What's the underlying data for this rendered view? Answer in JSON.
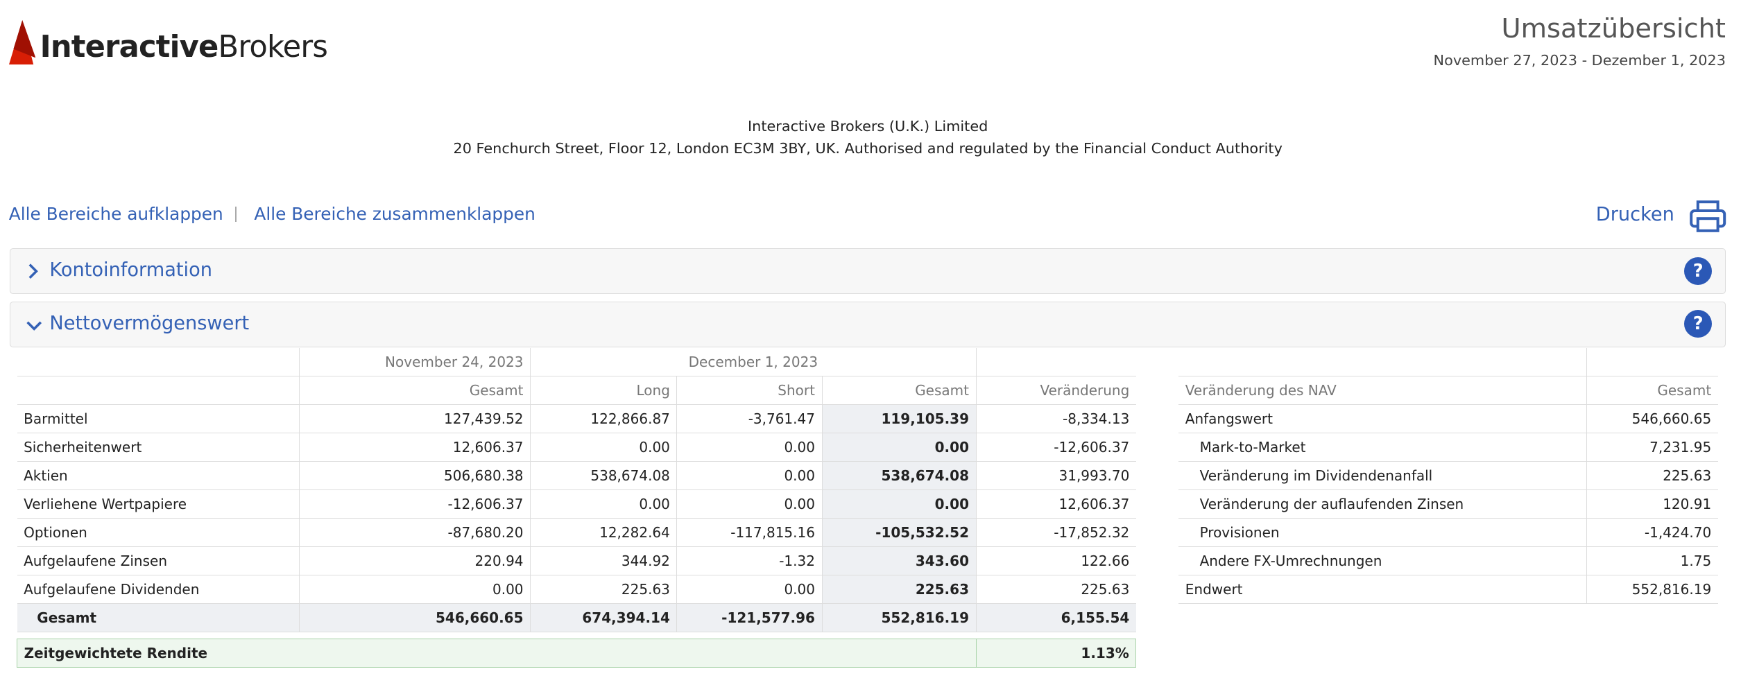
{
  "header": {
    "logo_bold": "Interactive",
    "logo_light": "Brokers",
    "title": "Umsatzübersicht",
    "period": "November 27, 2023 - Dezember 1, 2023"
  },
  "company": {
    "name": "Interactive Brokers (U.K.) Limited",
    "address": "20 Fenchurch Street, Floor 12, London EC3M 3BY, UK. Authorised and regulated by the Financial Conduct Authority"
  },
  "links": {
    "expand": "Alle Bereiche aufklappen",
    "collapse": "Alle Bereiche zusammenklappen",
    "print": "Drucken"
  },
  "sections": [
    {
      "title": "Kontoinformation"
    },
    {
      "title": "Nettovermögenswert"
    }
  ],
  "nav_table": {
    "group_headers": [
      "November 24, 2023",
      "December 1, 2023"
    ],
    "columns": [
      "Gesamt",
      "Long",
      "Short",
      "Gesamt",
      "Veränderung"
    ],
    "rows": [
      [
        "Barmittel",
        "127,439.52",
        "122,866.87",
        "-3,761.47",
        "119,105.39",
        "-8,334.13"
      ],
      [
        "Sicherheitenwert",
        "12,606.37",
        "0.00",
        "0.00",
        "0.00",
        "-12,606.37"
      ],
      [
        "Aktien",
        "506,680.38",
        "538,674.08",
        "0.00",
        "538,674.08",
        "31,993.70"
      ],
      [
        "Verliehene Wertpapiere",
        "-12,606.37",
        "0.00",
        "0.00",
        "0.00",
        "12,606.37"
      ],
      [
        "Optionen",
        "-87,680.20",
        "12,282.64",
        "-117,815.16",
        "-105,532.52",
        "-17,852.32"
      ],
      [
        "Aufgelaufene Zinsen",
        "220.94",
        "344.92",
        "-1.32",
        "343.60",
        "122.66"
      ],
      [
        "Aufgelaufene Dividenden",
        "0.00",
        "225.63",
        "0.00",
        "225.63",
        "225.63"
      ]
    ],
    "total": [
      "Gesamt",
      "546,660.65",
      "674,394.14",
      "-121,577.96",
      "552,816.19",
      "6,155.54"
    ],
    "return": {
      "label": "Zeitgewichtete Rendite",
      "value": "1.13%"
    }
  },
  "change_table": {
    "columns": [
      "Veränderung des NAV",
      "Gesamt"
    ],
    "rows": [
      [
        "Anfangswert",
        "546,660.65"
      ],
      [
        "Mark-to-Market",
        "7,231.95"
      ],
      [
        "Veränderung im Dividendenanfall",
        "225.63"
      ],
      [
        "Veränderung der auflaufenden Zinsen",
        "120.91"
      ],
      [
        "Provisionen",
        "-1,424.70"
      ],
      [
        "Andere FX-Umrechnungen",
        "1.75"
      ],
      [
        "Endwert",
        "552,816.19"
      ]
    ]
  }
}
